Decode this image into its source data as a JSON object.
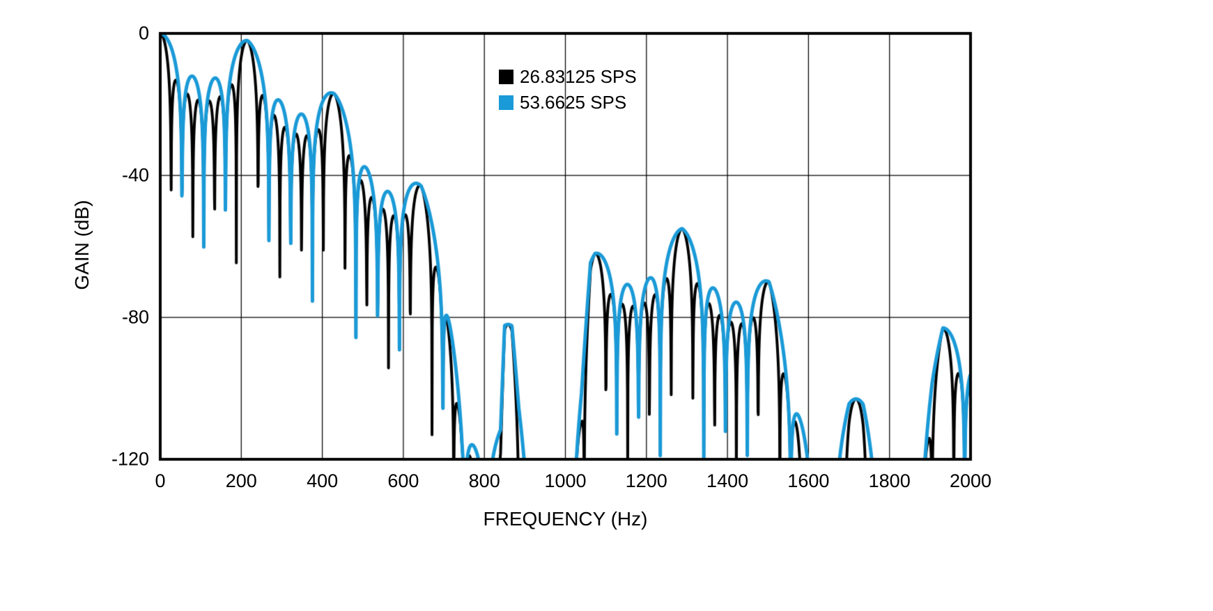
{
  "chart_data": {
    "type": "line",
    "title": "",
    "xlabel": "FREQUENCY (Hz)",
    "ylabel": "GAIN (dB)",
    "xlim": [
      0,
      2000
    ],
    "ylim": [
      -120,
      0
    ],
    "x_ticks": [
      0,
      200,
      400,
      600,
      800,
      1000,
      1200,
      1400,
      1600,
      1800,
      2000
    ],
    "y_ticks": [
      0,
      -40,
      -80,
      -120
    ],
    "grid": true,
    "legend_position": "top-center-inside",
    "render_step_hz": 0.6,
    "series": [
      {
        "name": "26.83125 SPS",
        "color": "#000000",
        "model": {
          "type": "moving-average-comb",
          "peak_period_hz": 214.65,
          "taps": 8,
          "notch_spacing_hz": 26.83125
        }
      },
      {
        "name": "53.6625 SPS",
        "color": "#1A9AD7",
        "model": {
          "type": "moving-average-comb",
          "peak_period_hz": 214.65,
          "taps": 4,
          "notch_spacing_hz": 53.6625
        }
      }
    ],
    "envelope_db_anchors": [
      [
        0,
        0
      ],
      [
        214.65,
        -2
      ],
      [
        429.3,
        -17
      ],
      [
        643.95,
        -43
      ],
      [
        700,
        -58
      ],
      [
        745,
        -95
      ],
      [
        800,
        -113
      ],
      [
        840,
        -110
      ],
      [
        850,
        -82
      ],
      [
        868,
        -82
      ],
      [
        885,
        -102
      ],
      [
        915,
        -122
      ],
      [
        960,
        -128
      ],
      [
        1005,
        -122
      ],
      [
        1040,
        -95
      ],
      [
        1062,
        -64
      ],
      [
        1073.25,
        -62
      ],
      [
        1287.9,
        -55
      ],
      [
        1502.55,
        -70
      ],
      [
        1565,
        -92
      ],
      [
        1620,
        -113
      ],
      [
        1660,
        -115
      ],
      [
        1700,
        -103
      ],
      [
        1735,
        -103
      ],
      [
        1775,
        -118
      ],
      [
        1830,
        -116
      ],
      [
        1880,
        -112
      ],
      [
        1905,
        -95
      ],
      [
        1931.85,
        -83
      ],
      [
        2000,
        -83
      ]
    ],
    "lobe_peaks_read_from_chart": [
      [
        0,
        0
      ],
      [
        215,
        -2
      ],
      [
        430,
        -17
      ],
      [
        645,
        -43
      ],
      [
        860,
        -81
      ],
      [
        1100,
        -62
      ],
      [
        1300,
        -55
      ],
      [
        1503,
        -70
      ],
      [
        1740,
        -103
      ],
      [
        1975,
        -82
      ]
    ],
    "colors": {
      "background": "#FFFFFF",
      "grid": "#000000",
      "axis_box": "#000000",
      "series_black": "#000000",
      "series_blue": "#1A9AD7"
    }
  }
}
